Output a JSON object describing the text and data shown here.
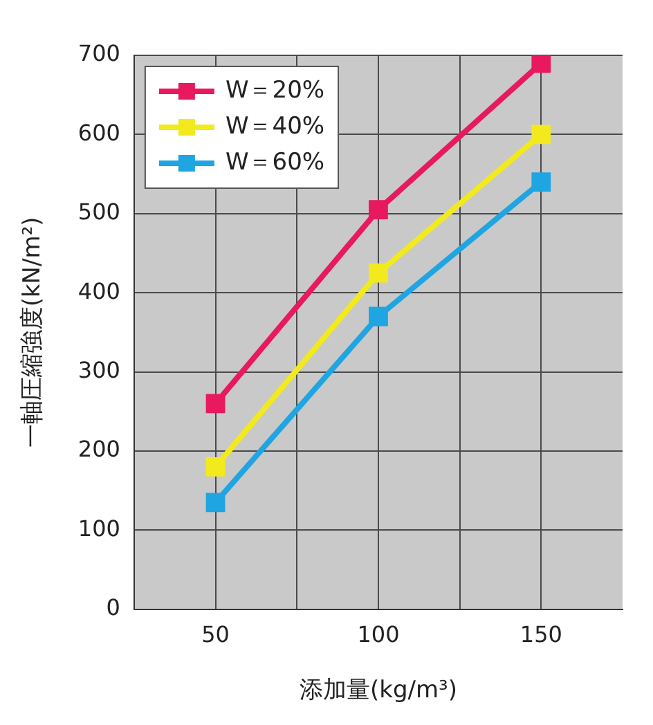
{
  "chart_data": {
    "type": "line",
    "xlabel": "添加量(kg/m³)",
    "ylabel": "一軸圧縮強度(kN/m²)",
    "x": [
      50,
      100,
      150
    ],
    "series": [
      {
        "name": "W＝20%",
        "color": "#e8195f",
        "values": [
          260,
          505,
          690
        ]
      },
      {
        "name": "W＝40%",
        "color": "#f2ea1c",
        "values": [
          180,
          425,
          600
        ]
      },
      {
        "name": "W＝60%",
        "color": "#1ea5e2",
        "values": [
          135,
          370,
          540
        ]
      }
    ],
    "xlim": [
      25,
      175
    ],
    "xticks": [
      50,
      {
        "value": 75,
        "label": null
      },
      100,
      {
        "value": 125,
        "label": null
      },
      150
    ],
    "ylim": [
      0,
      700
    ],
    "yticks": [
      0,
      100,
      200,
      300,
      400,
      500,
      600,
      700
    ],
    "grid": true,
    "legend": "top left",
    "marker": "square",
    "line_style": "solid"
  }
}
